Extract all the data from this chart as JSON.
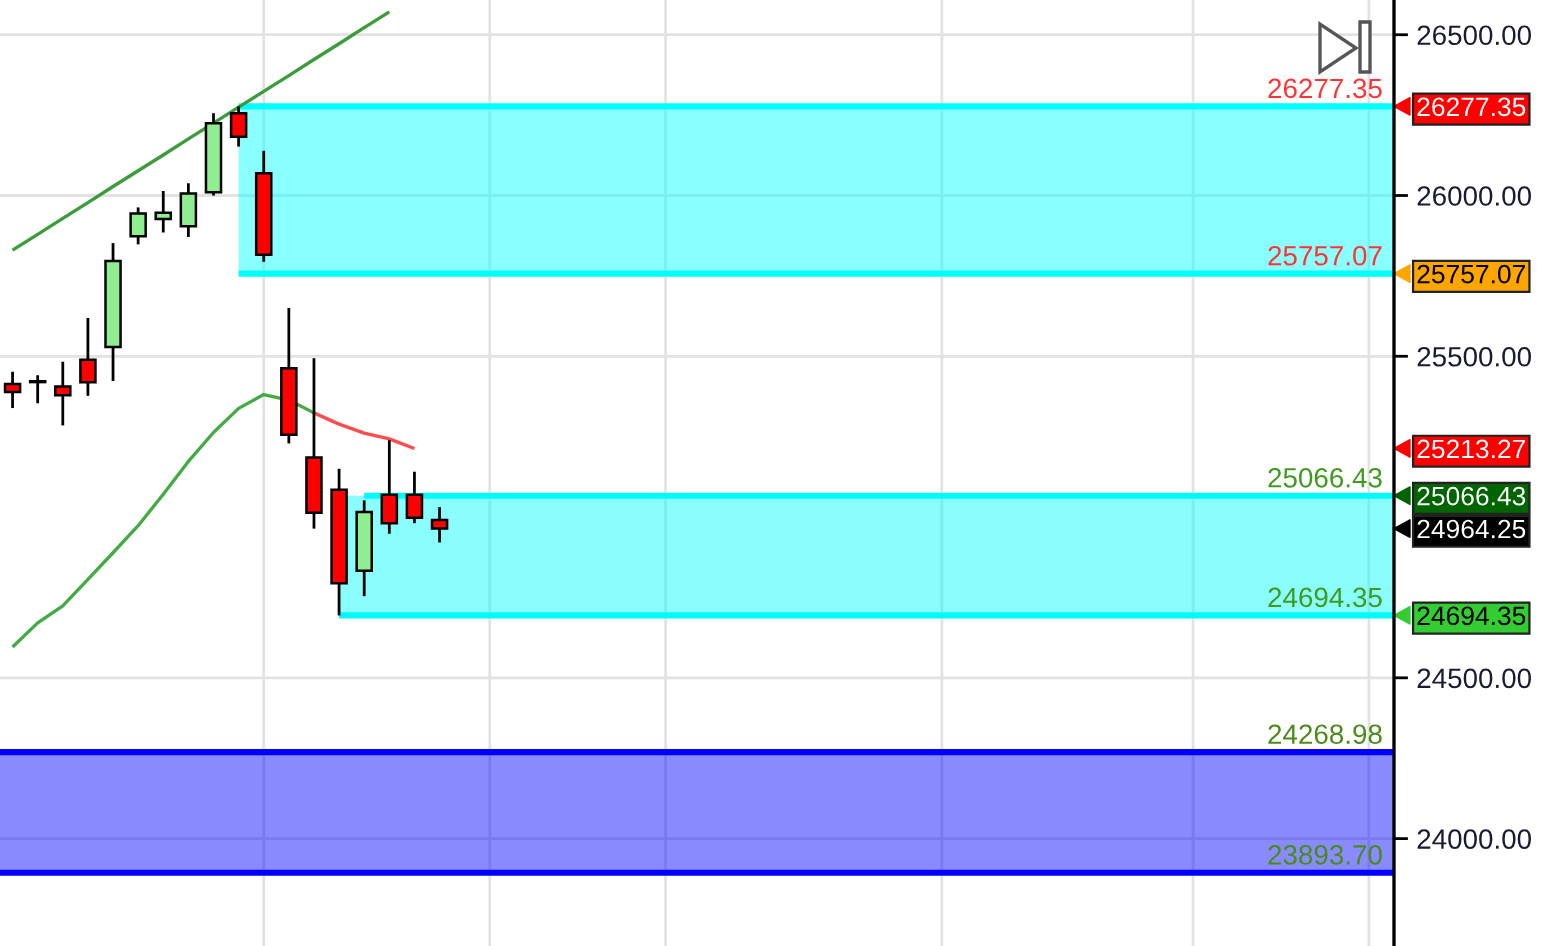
{
  "chart_data": {
    "type": "candlestick",
    "categories": [
      null,
      null,
      null,
      null,
      null,
      null,
      null,
      null,
      null,
      null,
      null,
      null,
      null,
      null,
      null,
      null,
      null,
      null,
      null,
      null,
      null,
      null,
      null,
      null,
      null,
      null,
      null,
      null,
      null,
      null,
      null,
      null,
      null,
      null,
      null,
      null,
      null,
      null,
      null,
      null,
      null,
      null,
      null,
      null,
      null,
      null,
      null,
      null,
      null,
      null,
      null,
      null,
      null,
      null,
      null,
      null
    ],
    "ohlc": [
      [
        25414,
        25452,
        25339,
        25389
      ],
      [
        25421,
        25441,
        25354,
        25421
      ],
      [
        25406,
        25483,
        25285,
        25379
      ],
      [
        25489,
        25619,
        25377,
        25419
      ],
      [
        25529,
        25852,
        25423,
        25796
      ],
      [
        25873,
        25963,
        25848,
        25944
      ],
      [
        25927,
        26014,
        25885,
        25946
      ],
      [
        25904,
        26038,
        25871,
        26006
      ],
      [
        26010,
        26256,
        26000,
        26225
      ],
      [
        26256,
        26277,
        26152,
        26183
      ],
      [
        26069,
        26139,
        25794,
        25816
      ],
      [
        25463,
        25650,
        25229,
        25256
      ],
      [
        25185,
        25494,
        24964,
        25013
      ],
      [
        25085,
        25150,
        24694,
        24794
      ],
      [
        24833,
        25052,
        24754,
        25016
      ],
      [
        25069,
        25239,
        24948,
        24981
      ],
      [
        25069,
        25141,
        24981,
        24998
      ],
      [
        24991,
        25031,
        24921,
        24964.25
      ],
      null,
      null,
      null,
      null,
      null,
      null,
      null,
      null,
      null,
      null,
      null,
      null,
      null,
      null,
      null,
      null,
      null,
      null,
      null,
      null,
      null,
      null,
      null,
      null,
      null,
      null,
      null,
      null,
      null,
      null,
      null,
      null,
      null,
      null,
      null,
      null,
      null,
      null
    ],
    "colors": [
      "#ff0000",
      "#000000",
      "#ff0000",
      "#ff0000",
      "#90ee90",
      "#90ee90",
      "#90ee90",
      "#90ee90",
      "#90ee90",
      "#ff0000",
      "#ff0000",
      "#ff0000",
      "#ff0000",
      "#ff0000",
      "#90ee90",
      "#ff0000",
      "#ff0000",
      "#ff0000",
      null,
      null,
      null,
      null,
      null,
      null,
      null,
      null,
      null,
      null,
      null,
      null,
      null,
      null,
      null,
      null,
      null,
      null,
      null,
      null,
      null,
      null,
      null,
      null,
      null,
      null,
      null,
      null,
      null,
      null,
      null,
      null,
      null,
      null,
      null,
      null,
      null,
      null
    ],
    "series": [
      {
        "type": "line",
        "color": "#00ffff",
        "values": [
          null,
          null,
          null,
          null,
          null,
          null,
          null,
          null,
          null,
          26277.35,
          26277.35,
          26277.35,
          26277.35,
          26277.35,
          26277.35,
          26277.35,
          26277.35,
          26277.35,
          26277.35,
          26277.35,
          26277.35,
          26277.35,
          26277.35,
          26277.35,
          26277.35,
          26277.35,
          26277.35,
          26277.35,
          26277.35,
          26277.35,
          26277.35,
          26277.35,
          26277.35,
          26277.35,
          26277.35,
          26277.35,
          26277.35,
          26277.35,
          26277.35,
          26277.35,
          26277.35,
          26277.35,
          26277.35,
          26277.35,
          26277.35,
          26277.35,
          26277.35,
          26277.35,
          26277.35,
          26277.35,
          26277.35,
          26277.35,
          26277.35,
          26277.35,
          26277.35,
          26277.35
        ],
        "lower": [
          null,
          null,
          null,
          null,
          null,
          null,
          null,
          null,
          null,
          25757.07,
          25757.07,
          25757.07,
          25757.07,
          25757.07,
          25757.07,
          25757.07,
          25757.07,
          25757.07,
          25757.07,
          25757.07,
          25757.07,
          25757.07,
          25757.07,
          25757.07,
          25757.07,
          25757.07,
          25757.07,
          25757.07,
          25757.07,
          25757.07,
          25757.07,
          25757.07,
          25757.07,
          25757.07,
          25757.07,
          25757.07,
          25757.07,
          25757.07,
          25757.07,
          25757.07,
          25757.07,
          25757.07,
          25757.07,
          25757.07,
          25757.07,
          25757.07,
          25757.07,
          25757.07,
          25757.07,
          25757.07,
          25757.07,
          25757.07,
          25757.07,
          25757.07,
          25757.07,
          25757.07
        ],
        "upper": [
          null,
          null,
          null,
          null,
          null,
          null,
          null,
          null,
          null,
          26277.35,
          26277.35,
          26277.35,
          26277.35,
          26277.35,
          26277.35,
          26277.35,
          26277.35,
          26277.35,
          26277.35,
          26277.35,
          26277.35,
          26277.35,
          26277.35,
          26277.35,
          26277.35,
          26277.35,
          26277.35,
          26277.35,
          26277.35,
          26277.35,
          26277.35,
          26277.35,
          26277.35,
          26277.35,
          26277.35,
          26277.35,
          26277.35,
          26277.35,
          26277.35,
          26277.35,
          26277.35,
          26277.35,
          26277.35,
          26277.35,
          26277.35,
          26277.35,
          26277.35,
          26277.35,
          26277.35,
          26277.35,
          26277.35,
          26277.35,
          26277.35,
          26277.35,
          26277.35,
          26277.35
        ],
        "value_labels": [
          null,
          null,
          null,
          null,
          null,
          null,
          null,
          null,
          null,
          null,
          null,
          null,
          null,
          null,
          null,
          null,
          null,
          null,
          null,
          null,
          null,
          null,
          null,
          null,
          null,
          null,
          null,
          null,
          null,
          null,
          null,
          null,
          null,
          null,
          null,
          null,
          null,
          null,
          null,
          null,
          null,
          null,
          null,
          null,
          null,
          null,
          null,
          null,
          null,
          null,
          null,
          null,
          null,
          null,
          null,
          "26277.35"
        ]
      },
      {
        "type": "line",
        "color": "#00ffff",
        "values": [
          null,
          null,
          null,
          null,
          null,
          null,
          null,
          null,
          null,
          25757.07,
          25757.07,
          25757.07,
          25757.07,
          25757.07,
          25757.07,
          25757.07,
          25757.07,
          25757.07,
          25757.07,
          25757.07,
          25757.07,
          25757.07,
          25757.07,
          25757.07,
          25757.07,
          25757.07,
          25757.07,
          25757.07,
          25757.07,
          25757.07,
          25757.07,
          25757.07,
          25757.07,
          25757.07,
          25757.07,
          25757.07,
          25757.07,
          25757.07,
          25757.07,
          25757.07,
          25757.07,
          25757.07,
          25757.07,
          25757.07,
          25757.07,
          25757.07,
          25757.07,
          25757.07,
          25757.07,
          25757.07,
          25757.07,
          25757.07,
          25757.07,
          25757.07,
          25757.07,
          25757.07
        ],
        "value_labels": [
          null,
          null,
          null,
          null,
          null,
          null,
          null,
          null,
          null,
          null,
          null,
          null,
          null,
          null,
          null,
          null,
          null,
          null,
          null,
          null,
          null,
          null,
          null,
          null,
          null,
          null,
          null,
          null,
          null,
          null,
          null,
          null,
          null,
          null,
          null,
          null,
          null,
          null,
          null,
          null,
          null,
          null,
          null,
          null,
          null,
          null,
          null,
          null,
          null,
          null,
          null,
          null,
          null,
          null,
          null,
          "25757.07"
        ]
      },
      {
        "type": "line",
        "color": "#00fafa",
        "values": [
          null,
          null,
          null,
          null,
          null,
          null,
          null,
          null,
          null,
          null,
          null,
          null,
          null,
          null,
          25066.43,
          25066.43,
          25066.43,
          25066.43,
          25066.43,
          25066.43,
          25066.43,
          25066.43,
          25066.43,
          25066.43,
          25066.43,
          25066.43,
          25066.43,
          25066.43,
          25066.43,
          25066.43,
          25066.43,
          25066.43,
          25066.43,
          25066.43,
          25066.43,
          25066.43,
          25066.43,
          25066.43,
          25066.43,
          25066.43,
          25066.43,
          25066.43,
          25066.43,
          25066.43,
          25066.43,
          25066.43,
          25066.43,
          25066.43,
          25066.43,
          25066.43,
          25066.43,
          25066.43,
          25066.43,
          25066.43,
          25066.43,
          25066.43
        ],
        "lower": [
          null,
          null,
          null,
          null,
          null,
          null,
          null,
          null,
          null,
          null,
          null,
          null,
          null,
          24694.35,
          24694.35,
          24694.35,
          24694.35,
          24694.35,
          24694.35,
          24694.35,
          24694.35,
          24694.35,
          24694.35,
          24694.35,
          24694.35,
          24694.35,
          24694.35,
          24694.35,
          24694.35,
          24694.35,
          24694.35,
          24694.35,
          24694.35,
          24694.35,
          24694.35,
          24694.35,
          24694.35,
          24694.35,
          24694.35,
          24694.35,
          24694.35,
          24694.35,
          24694.35,
          24694.35,
          24694.35,
          24694.35,
          24694.35,
          24694.35,
          24694.35,
          24694.35,
          24694.35,
          24694.35,
          24694.35,
          24694.35,
          24694.35,
          24694.35
        ],
        "upper": [
          null,
          null,
          null,
          null,
          null,
          null,
          null,
          null,
          null,
          null,
          null,
          null,
          null,
          25066.43,
          25066.43,
          25066.43,
          25066.43,
          25066.43,
          25066.43,
          25066.43,
          25066.43,
          25066.43,
          25066.43,
          25066.43,
          25066.43,
          25066.43,
          25066.43,
          25066.43,
          25066.43,
          25066.43,
          25066.43,
          25066.43,
          25066.43,
          25066.43,
          25066.43,
          25066.43,
          25066.43,
          25066.43,
          25066.43,
          25066.43,
          25066.43,
          25066.43,
          25066.43,
          25066.43,
          25066.43,
          25066.43,
          25066.43,
          25066.43,
          25066.43,
          25066.43,
          25066.43,
          25066.43,
          25066.43,
          25066.43,
          25066.43,
          25066.43
        ],
        "value_labels": [
          null,
          null,
          null,
          null,
          null,
          null,
          null,
          null,
          null,
          null,
          null,
          null,
          null,
          null,
          null,
          null,
          null,
          null,
          null,
          null,
          null,
          null,
          null,
          null,
          null,
          null,
          null,
          null,
          null,
          null,
          null,
          null,
          null,
          null,
          null,
          null,
          null,
          null,
          null,
          null,
          null,
          null,
          null,
          null,
          null,
          null,
          null,
          null,
          null,
          null,
          null,
          null,
          null,
          null,
          null,
          "25066.43"
        ]
      },
      {
        "type": "line",
        "color": "#00fafa",
        "values": [
          null,
          null,
          null,
          null,
          null,
          null,
          null,
          null,
          null,
          null,
          null,
          null,
          null,
          24694.35,
          24694.35,
          24694.35,
          24694.35,
          24694.35,
          24694.35,
          24694.35,
          24694.35,
          24694.35,
          24694.35,
          24694.35,
          24694.35,
          24694.35,
          24694.35,
          24694.35,
          24694.35,
          24694.35,
          24694.35,
          24694.35,
          24694.35,
          24694.35,
          24694.35,
          24694.35,
          24694.35,
          24694.35,
          24694.35,
          24694.35,
          24694.35,
          24694.35,
          24694.35,
          24694.35,
          24694.35,
          24694.35,
          24694.35,
          24694.35,
          24694.35,
          24694.35,
          24694.35,
          24694.35,
          24694.35,
          24694.35,
          24694.35,
          24694.35
        ],
        "value_labels": [
          null,
          null,
          null,
          null,
          null,
          null,
          null,
          null,
          null,
          null,
          null,
          null,
          null,
          null,
          null,
          null,
          null,
          null,
          null,
          null,
          null,
          null,
          null,
          null,
          null,
          null,
          null,
          null,
          null,
          null,
          null,
          null,
          null,
          null,
          null,
          null,
          null,
          null,
          null,
          null,
          null,
          null,
          null,
          null,
          null,
          null,
          null,
          null,
          null,
          null,
          null,
          null,
          null,
          null,
          null,
          "24694.35"
        ]
      },
      {
        "type": "line",
        "color": "#3c9c3c",
        "values": [
          25830,
          25879,
          25929,
          25978,
          26028,
          26077,
          26126,
          26176,
          26225,
          26275,
          26324,
          26373,
          26423,
          26472,
          26522,
          26571,
          null,
          null,
          null,
          null,
          null,
          null,
          null,
          null,
          null,
          null,
          null,
          null,
          null,
          null,
          null,
          null,
          null,
          null,
          null,
          null,
          null,
          null,
          null,
          null,
          null,
          null,
          null,
          null,
          null,
          null,
          null,
          null,
          null,
          null,
          null,
          null,
          null,
          null,
          null,
          null
        ]
      },
      {
        "type": "line",
        "color": "#44aa44",
        "values": [
          24596,
          24671,
          24724,
          24806,
          24889,
          24973,
          25071,
          25173,
          25263,
          25338,
          25381,
          25364,
          25324,
          null,
          null,
          null,
          null,
          null,
          null,
          null,
          null,
          null,
          null,
          null,
          null,
          null,
          null,
          null,
          null,
          null,
          null,
          null,
          null,
          null,
          null,
          null,
          null,
          null,
          null,
          null,
          null,
          null,
          null,
          null,
          null,
          null,
          null,
          null,
          null,
          null,
          null,
          null,
          null,
          null,
          null,
          null
        ]
      },
      {
        "type": "line",
        "color": "#ff4d4d",
        "values": [
          null,
          null,
          null,
          null,
          null,
          null,
          null,
          null,
          null,
          null,
          null,
          null,
          25324,
          25289,
          25261,
          25243,
          25213.27,
          null,
          null,
          null,
          null,
          null,
          null,
          null,
          null,
          null,
          null,
          null,
          null,
          null,
          null,
          null,
          null,
          null,
          null,
          null,
          null,
          null,
          null,
          null,
          null,
          null,
          null,
          null,
          null,
          null,
          null,
          null,
          null,
          null,
          null,
          null,
          null,
          null,
          null,
          null
        ]
      }
    ],
    "bands": [
      {
        "axis": "y",
        "from": 23893.7,
        "to": 24268.98,
        "color": "#0000ff"
      }
    ],
    "ref_lines": [
      {
        "axis": "y",
        "value": 24268.98,
        "label": "24268.98",
        "color": "#0000ff"
      },
      {
        "axis": "y",
        "value": 23893.7,
        "label": "23893.70",
        "color": "#0000ff"
      }
    ],
    "ylim": [
      23666,
      26608
    ],
    "yticks": [
      {
        "value": 24000,
        "label": "24000.00"
      },
      {
        "value": 24500,
        "label": "24500.00"
      },
      24694.35,
      24964.25,
      25066.43,
      25213.27,
      {
        "value": 25500,
        "label": "25500.00"
      },
      25757.07,
      {
        "value": 26000,
        "label": "26000.00"
      },
      26277.35,
      {
        "value": 26500,
        "label": "26500.00"
      }
    ],
    "grid": true,
    "tick_labels": "y"
  }
}
